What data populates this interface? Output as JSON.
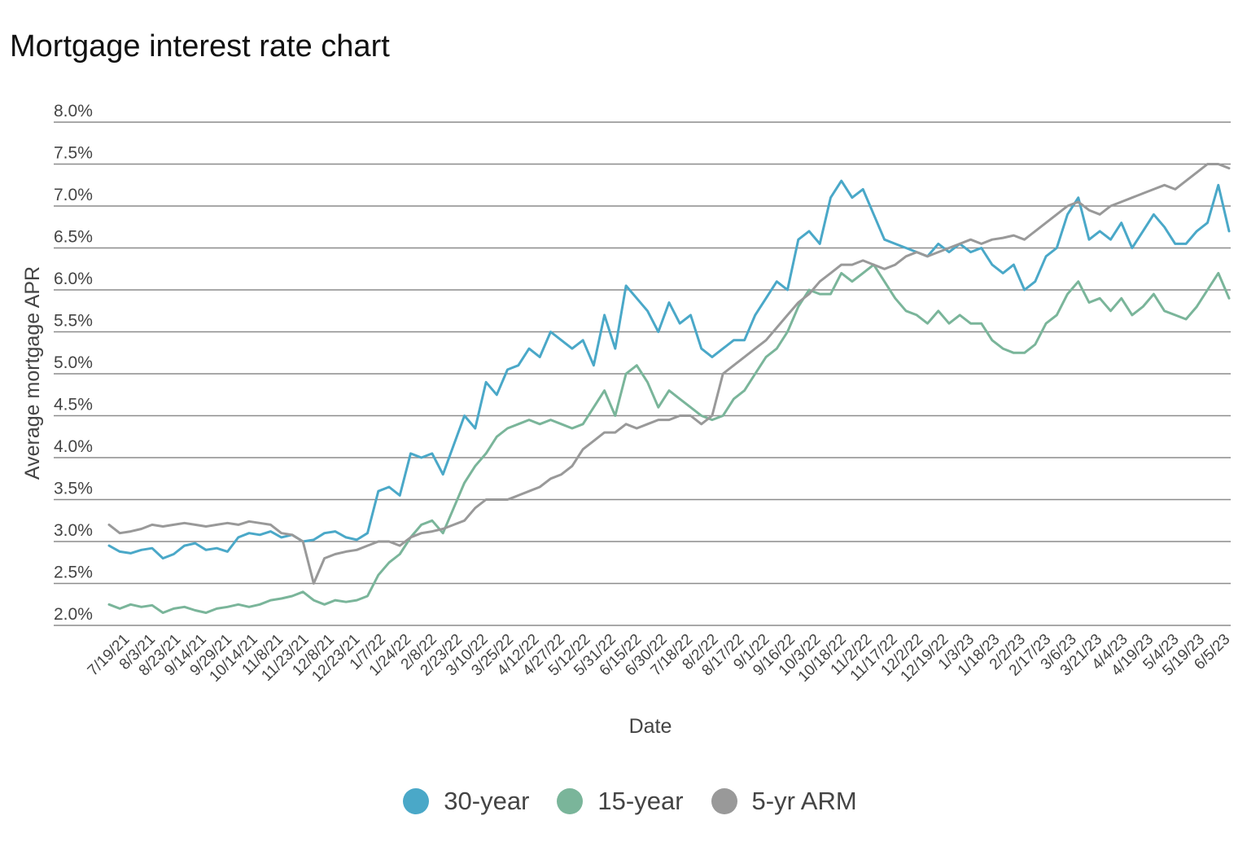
{
  "chart_data": {
    "type": "line",
    "title": "Mortgage interest rate chart",
    "xlabel": "Date",
    "ylabel": "Average mortgage APR",
    "ylim": [
      2.0,
      8.0
    ],
    "y_ticks": [
      "2.0%",
      "2.5%",
      "3.0%",
      "3.5%",
      "4.0%",
      "4.5%",
      "5.0%",
      "5.5%",
      "6.0%",
      "6.5%",
      "7.0%",
      "7.5%",
      "8.0%"
    ],
    "x_tick_labels": [
      "7/19/21",
      "8/3/21",
      "8/23/21",
      "9/14/21",
      "9/29/21",
      "10/14/21",
      "11/8/21",
      "11/23/21",
      "12/8/21",
      "12/23/21",
      "1/7/22",
      "1/24/22",
      "2/8/22",
      "2/23/22",
      "3/10/22",
      "3/25/22",
      "4/12/22",
      "4/27/22",
      "5/12/22",
      "5/31/22",
      "6/15/22",
      "6/30/22",
      "7/18/22",
      "8/2/22",
      "8/17/22",
      "9/1/22",
      "9/16/22",
      "10/3/22",
      "10/18/22",
      "11/2/22",
      "11/17/22",
      "12/2/22",
      "12/19/22",
      "1/3/23",
      "1/18/23",
      "2/2/23",
      "2/17/23",
      "3/6/23",
      "3/21/23",
      "4/4/23",
      "4/19/23",
      "5/4/23",
      "5/19/23",
      "6/5/23"
    ],
    "grid": true,
    "legend_position": "bottom",
    "series": [
      {
        "name": "30-year",
        "color": "#4AA8C8",
        "values": [
          2.95,
          2.88,
          2.86,
          2.9,
          2.92,
          2.8,
          2.85,
          2.95,
          2.98,
          2.9,
          2.92,
          2.88,
          3.05,
          3.1,
          3.08,
          3.12,
          3.05,
          3.08,
          3.0,
          3.02,
          3.1,
          3.12,
          3.05,
          3.02,
          3.1,
          3.6,
          3.65,
          3.55,
          4.05,
          4.0,
          4.05,
          3.8,
          4.15,
          4.5,
          4.35,
          4.9,
          4.75,
          5.05,
          5.1,
          5.3,
          5.2,
          5.5,
          5.4,
          5.3,
          5.4,
          5.1,
          5.7,
          5.3,
          6.05,
          5.9,
          5.75,
          5.5,
          5.85,
          5.6,
          5.7,
          5.3,
          5.2,
          5.3,
          5.4,
          5.4,
          5.7,
          5.9,
          6.1,
          6.0,
          6.6,
          6.7,
          6.55,
          7.1,
          7.3,
          7.1,
          7.2,
          6.9,
          6.6,
          6.55,
          6.5,
          6.45,
          6.4,
          6.55,
          6.45,
          6.55,
          6.45,
          6.5,
          6.3,
          6.2,
          6.3,
          6.0,
          6.1,
          6.4,
          6.5,
          6.9,
          7.1,
          6.6,
          6.7,
          6.6,
          6.8,
          6.5,
          6.7,
          6.9,
          6.75,
          6.55,
          6.55,
          6.7,
          6.8,
          7.25,
          6.7
        ]
      },
      {
        "name": "15-year",
        "color": "#7AB59A",
        "values": [
          2.25,
          2.2,
          2.25,
          2.22,
          2.24,
          2.15,
          2.2,
          2.22,
          2.18,
          2.15,
          2.2,
          2.22,
          2.25,
          2.22,
          2.25,
          2.3,
          2.32,
          2.35,
          2.4,
          2.3,
          2.25,
          2.3,
          2.28,
          2.3,
          2.35,
          2.6,
          2.75,
          2.85,
          3.05,
          3.2,
          3.25,
          3.1,
          3.4,
          3.7,
          3.9,
          4.05,
          4.25,
          4.35,
          4.4,
          4.45,
          4.4,
          4.45,
          4.4,
          4.35,
          4.4,
          4.6,
          4.8,
          4.5,
          5.0,
          5.1,
          4.9,
          4.6,
          4.8,
          4.7,
          4.6,
          4.5,
          4.45,
          4.5,
          4.7,
          4.8,
          5.0,
          5.2,
          5.3,
          5.5,
          5.8,
          6.0,
          5.95,
          5.95,
          6.2,
          6.1,
          6.2,
          6.3,
          6.1,
          5.9,
          5.75,
          5.7,
          5.6,
          5.75,
          5.6,
          5.7,
          5.6,
          5.6,
          5.4,
          5.3,
          5.25,
          5.25,
          5.35,
          5.6,
          5.7,
          5.95,
          6.1,
          5.85,
          5.9,
          5.75,
          5.9,
          5.7,
          5.8,
          5.95,
          5.75,
          5.7,
          5.65,
          5.8,
          6.0,
          6.2,
          5.9
        ]
      },
      {
        "name": "5-yr ARM",
        "color": "#999999",
        "values": [
          3.2,
          3.1,
          3.12,
          3.15,
          3.2,
          3.18,
          3.2,
          3.22,
          3.2,
          3.18,
          3.2,
          3.22,
          3.2,
          3.24,
          3.22,
          3.2,
          3.1,
          3.08,
          3.0,
          2.5,
          2.8,
          2.85,
          2.88,
          2.9,
          2.95,
          3.0,
          3.0,
          2.95,
          3.05,
          3.1,
          3.12,
          3.15,
          3.2,
          3.25,
          3.4,
          3.5,
          3.5,
          3.5,
          3.55,
          3.6,
          3.65,
          3.75,
          3.8,
          3.9,
          4.1,
          4.2,
          4.3,
          4.3,
          4.4,
          4.35,
          4.4,
          4.45,
          4.45,
          4.5,
          4.5,
          4.4,
          4.5,
          5.0,
          5.1,
          5.2,
          5.3,
          5.4,
          5.55,
          5.7,
          5.85,
          5.95,
          6.1,
          6.2,
          6.3,
          6.3,
          6.35,
          6.3,
          6.25,
          6.3,
          6.4,
          6.45,
          6.4,
          6.45,
          6.5,
          6.55,
          6.6,
          6.55,
          6.6,
          6.62,
          6.65,
          6.6,
          6.7,
          6.8,
          6.9,
          7.0,
          7.05,
          6.95,
          6.9,
          7.0,
          7.05,
          7.1,
          7.15,
          7.2,
          7.25,
          7.2,
          7.3,
          7.4,
          7.5,
          7.5,
          7.45
        ]
      }
    ]
  }
}
